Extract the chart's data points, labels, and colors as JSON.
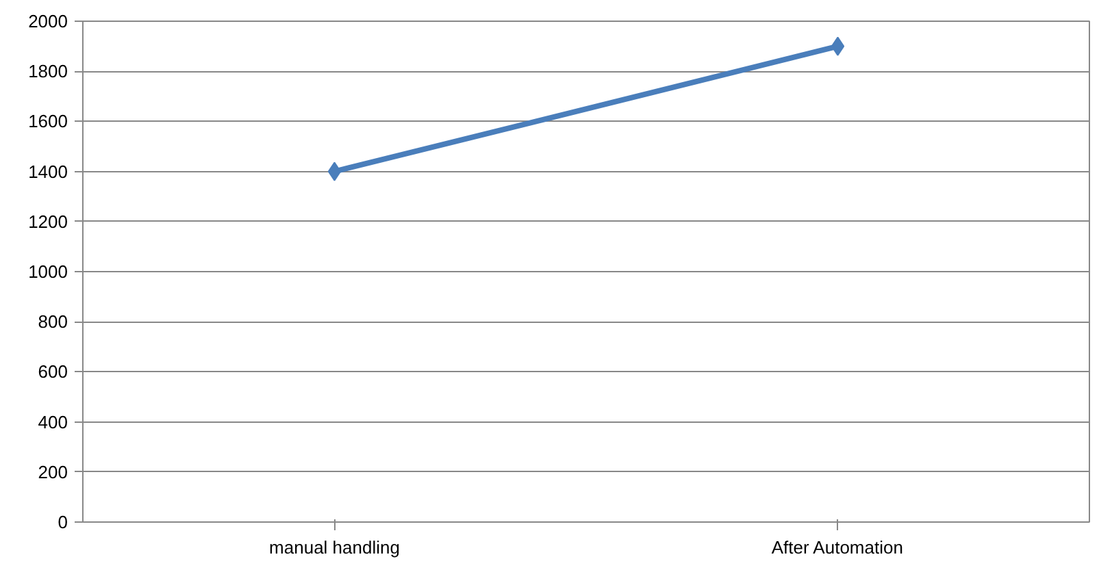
{
  "chart_data": {
    "type": "line",
    "categories": [
      "manual handling",
      "After Automation"
    ],
    "series": [
      {
        "color": "#4a7ebb",
        "values": [
          1400,
          1900
        ]
      }
    ],
    "ylim": [
      0,
      2000
    ],
    "yticks": [
      0,
      200,
      400,
      600,
      800,
      1000,
      1200,
      1400,
      1600,
      1800,
      2000
    ],
    "grid": "y",
    "marker": "diamond",
    "line_style": "solid"
  }
}
